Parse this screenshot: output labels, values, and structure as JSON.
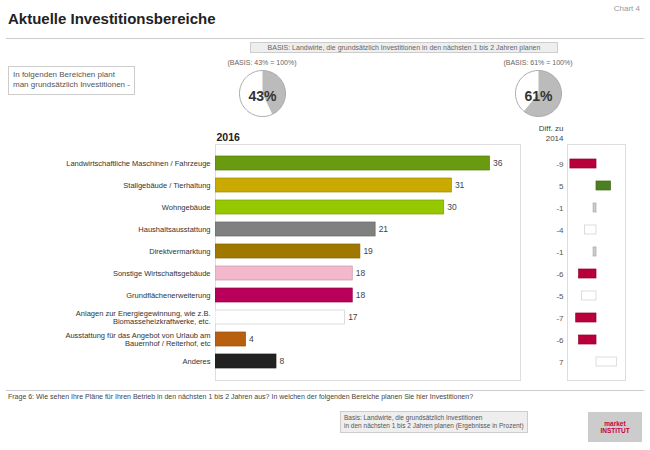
{
  "chart_data": [
    {
      "type": "bar",
      "orientation": "horizontal",
      "title": "Aktuelle Investitionsbereiche",
      "xlabel": "2016",
      "categories": [
        "Landwirtschaftliche Maschinen / Fahrzeuge",
        "Stallgebäude / Tierhaltung",
        "Wohngebäude",
        "Haushaltsausstattung",
        "Direktvermarktung",
        "Sonstige Wirtschaftsgebäude",
        "Grundflächenerweiterung",
        "Anlagen zur Energiegewinnung, wie z.B. Biomasseheizkraftwerke, etc.",
        "Ausstattung für das Angebot von Urlaub am Bauernhof / Reiterhof, etc",
        "Anderes"
      ],
      "values": [
        36,
        31,
        30,
        21,
        19,
        18,
        18,
        17,
        4,
        8
      ],
      "colors": [
        "#6a9a10",
        "#c8aa00",
        "#96c800",
        "#808080",
        "#a07800",
        "#f4b8cc",
        "#b8005a",
        "#ffffff",
        "#b86010",
        "#222222"
      ],
      "xlim": [
        0,
        40
      ],
      "tick_labels": "y",
      "data_labels": true,
      "annotations": [
        "Chart 4",
        "BASIS: Landwirte, die grundsätzlich Investitionen in den nächsten 1 bis 2 Jahren planen",
        "In folgenden Bereichen plant\nman grundsätzlich Investitionen -",
        "Frage 6:   Wie sehen Ihre Pläne für Ihren Betrieb in den nächsten 1 bis 2 Jahren aus? In welchen der folgenden Bereiche planen Sie hier Investitionen?",
        "Basis: Landwirte, die grundsätzlich Investitionen\nin den nächsten 1 bis 2 Jahren planen (Ergebnisse in Prozent)",
        "market\nINSTITUT"
      ]
    },
    {
      "type": "bar",
      "orientation": "horizontal",
      "xlabel": "Diff. zu\n2014",
      "categories": [
        "Landwirtschaftliche Maschinen / Fahrzeuge",
        "Stallgebäude / Tierhaltung",
        "Wohngebäude",
        "Haushaltsausstattung",
        "Direktvermarktung",
        "Sonstige Wirtschaftsgebäude",
        "Grundflächenerweiterung",
        "Anlagen zur Energiegewinnung, wie z.B. Biomasseheizkraftwerke, etc.",
        "Ausstattung für das Angebot von Urlaub am Bauernhof / Reiterhof, etc",
        "Anderes"
      ],
      "values": [
        -9,
        5,
        -1,
        -4,
        -1,
        -6,
        -5,
        -7,
        -6,
        7
      ],
      "colors": [
        "#b8003a",
        "#4a8020",
        "#cccccc",
        "#ffffff",
        "#cccccc",
        "#b8003a",
        "#ffffff",
        "#b8003a",
        "#b8003a",
        "#ffffff"
      ],
      "xlim": [
        -10,
        10
      ],
      "tick_labels": false,
      "data_labels": true
    },
    {
      "type": "pie",
      "title": "(BASIS: 43% = 100%)",
      "values": [
        43
      ],
      "value_labels": [
        "43%"
      ],
      "ylim": [
        0,
        100
      ],
      "color": "#bbbbbb"
    },
    {
      "type": "pie",
      "title": "(BASIS: 61% = 100%)",
      "values": [
        61
      ],
      "value_labels": [
        "61%"
      ],
      "ylim": [
        0,
        100
      ],
      "color": "#bbbbbb"
    }
  ]
}
